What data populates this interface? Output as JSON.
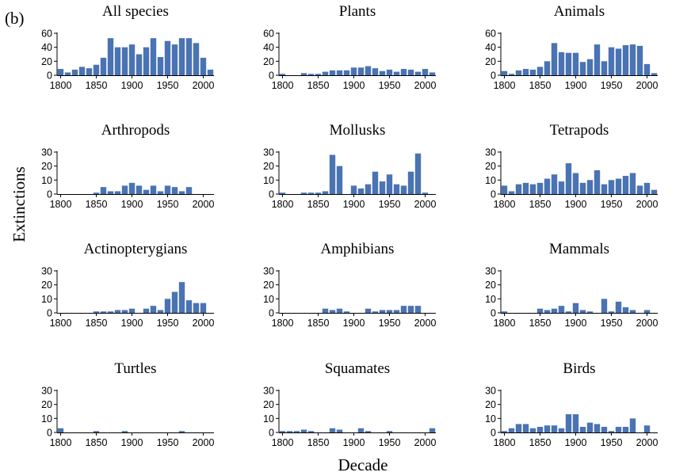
{
  "figure": {
    "label": "(b)",
    "xlabel": "Decade",
    "ylabel": "Extinctions",
    "bar_color": "#4a73b3"
  },
  "chart_data": [
    {
      "type": "bar",
      "title": "All species",
      "ylim": [
        0,
        60
      ],
      "yticks": [
        0,
        20,
        40,
        60
      ],
      "xticks": [
        1800,
        1850,
        1900,
        1950,
        2000
      ],
      "decades": [
        1800,
        1810,
        1820,
        1830,
        1840,
        1850,
        1860,
        1870,
        1880,
        1890,
        1900,
        1910,
        1920,
        1930,
        1940,
        1950,
        1960,
        1970,
        1980,
        1990,
        2000,
        2010
      ],
      "values": [
        9,
        4,
        8,
        12,
        10,
        15,
        25,
        53,
        40,
        40,
        44,
        30,
        40,
        53,
        26,
        49,
        44,
        53,
        53,
        46,
        25,
        8
      ]
    },
    {
      "type": "bar",
      "title": "Plants",
      "ylim": [
        0,
        60
      ],
      "yticks": [
        0,
        20,
        40,
        60
      ],
      "xticks": [
        1800,
        1850,
        1900,
        1950,
        2000
      ],
      "decades": [
        1800,
        1810,
        1820,
        1830,
        1840,
        1850,
        1860,
        1870,
        1880,
        1890,
        1900,
        1910,
        1920,
        1930,
        1940,
        1950,
        1960,
        1970,
        1980,
        1990,
        2000,
        2010
      ],
      "values": [
        2,
        0,
        0,
        3,
        2,
        2,
        5,
        7,
        7,
        7,
        11,
        11,
        13,
        10,
        6,
        8,
        5,
        9,
        8,
        5,
        9,
        4
      ]
    },
    {
      "type": "bar",
      "title": "Animals",
      "ylim": [
        0,
        60
      ],
      "yticks": [
        0,
        20,
        40,
        60
      ],
      "xticks": [
        1800,
        1850,
        1900,
        1950,
        2000
      ],
      "decades": [
        1800,
        1810,
        1820,
        1830,
        1840,
        1850,
        1860,
        1870,
        1880,
        1890,
        1900,
        1910,
        1920,
        1930,
        1940,
        1950,
        1960,
        1970,
        1980,
        1990,
        2000,
        2010
      ],
      "values": [
        6,
        2,
        7,
        9,
        8,
        12,
        20,
        46,
        33,
        32,
        32,
        19,
        23,
        44,
        20,
        40,
        38,
        43,
        44,
        42,
        16,
        3
      ]
    },
    {
      "type": "bar",
      "title": "Arthropods",
      "ylim": [
        0,
        30
      ],
      "yticks": [
        0,
        10,
        20,
        30
      ],
      "xticks": [
        1800,
        1850,
        1900,
        1950,
        2000
      ],
      "decades": [
        1800,
        1810,
        1820,
        1830,
        1840,
        1850,
        1860,
        1870,
        1880,
        1890,
        1900,
        1910,
        1920,
        1930,
        1940,
        1950,
        1960,
        1970,
        1980,
        1990,
        2000,
        2010
      ],
      "values": [
        0,
        0,
        0,
        0,
        0,
        1,
        5,
        2,
        2,
        6,
        8,
        6,
        3,
        6,
        2,
        6,
        5,
        2,
        5,
        0,
        0,
        0
      ]
    },
    {
      "type": "bar",
      "title": "Mollusks",
      "ylim": [
        0,
        30
      ],
      "yticks": [
        0,
        10,
        20,
        30
      ],
      "xticks": [
        1800,
        1850,
        1900,
        1950,
        2000
      ],
      "decades": [
        1800,
        1810,
        1820,
        1830,
        1840,
        1850,
        1860,
        1870,
        1880,
        1890,
        1900,
        1910,
        1920,
        1930,
        1940,
        1950,
        1960,
        1970,
        1980,
        1990,
        2000,
        2010
      ],
      "values": [
        1,
        0,
        0,
        1,
        1,
        1,
        2,
        28,
        20,
        0,
        6,
        4,
        7,
        16,
        9,
        14,
        7,
        6,
        16,
        29,
        1,
        0
      ]
    },
    {
      "type": "bar",
      "title": "Tetrapods",
      "ylim": [
        0,
        30
      ],
      "yticks": [
        0,
        10,
        20,
        30
      ],
      "xticks": [
        1800,
        1850,
        1900,
        1950,
        2000
      ],
      "decades": [
        1800,
        1810,
        1820,
        1830,
        1840,
        1850,
        1860,
        1870,
        1880,
        1890,
        1900,
        1910,
        1920,
        1930,
        1940,
        1950,
        1960,
        1970,
        1980,
        1990,
        2000,
        2010
      ],
      "values": [
        6,
        2,
        7,
        8,
        7,
        8,
        11,
        14,
        9,
        22,
        15,
        8,
        10,
        17,
        7,
        10,
        11,
        13,
        15,
        6,
        8,
        3
      ]
    },
    {
      "type": "bar",
      "title": "Actinopterygians",
      "ylim": [
        0,
        30
      ],
      "yticks": [
        0,
        10,
        20,
        30
      ],
      "xticks": [
        1800,
        1850,
        1900,
        1950,
        2000
      ],
      "decades": [
        1800,
        1810,
        1820,
        1830,
        1840,
        1850,
        1860,
        1870,
        1880,
        1890,
        1900,
        1910,
        1920,
        1930,
        1940,
        1950,
        1960,
        1970,
        1980,
        1990,
        2000,
        2010
      ],
      "values": [
        0,
        0,
        0,
        0,
        0,
        1,
        1,
        1,
        2,
        2,
        3,
        0,
        3,
        5,
        2,
        10,
        15,
        22,
        9,
        7,
        7,
        0
      ]
    },
    {
      "type": "bar",
      "title": "Amphibians",
      "ylim": [
        0,
        30
      ],
      "yticks": [
        0,
        10,
        20,
        30
      ],
      "xticks": [
        1800,
        1850,
        1900,
        1950,
        2000
      ],
      "decades": [
        1800,
        1810,
        1820,
        1830,
        1840,
        1850,
        1860,
        1870,
        1880,
        1890,
        1900,
        1910,
        1920,
        1930,
        1940,
        1950,
        1960,
        1970,
        1980,
        1990,
        2000,
        2010
      ],
      "values": [
        0,
        0,
        0,
        0,
        0,
        0,
        3,
        2,
        3,
        1,
        0,
        0,
        3,
        1,
        2,
        2,
        2,
        5,
        5,
        5,
        0,
        0
      ]
    },
    {
      "type": "bar",
      "title": "Mammals",
      "ylim": [
        0,
        30
      ],
      "yticks": [
        0,
        10,
        20,
        30
      ],
      "xticks": [
        1800,
        1850,
        1900,
        1950,
        2000
      ],
      "decades": [
        1800,
        1810,
        1820,
        1830,
        1840,
        1850,
        1860,
        1870,
        1880,
        1890,
        1900,
        1910,
        1920,
        1930,
        1940,
        1950,
        1960,
        1970,
        1980,
        1990,
        2000,
        2010
      ],
      "values": [
        1,
        0,
        0,
        0,
        0,
        3,
        2,
        3,
        5,
        1,
        7,
        2,
        1,
        0,
        10,
        1,
        8,
        4,
        2,
        0,
        2,
        0
      ]
    },
    {
      "type": "bar",
      "title": "Turtles",
      "ylim": [
        0,
        30
      ],
      "yticks": [
        0,
        10,
        20,
        30
      ],
      "xticks": [
        1800,
        1850,
        1900,
        1950,
        2000
      ],
      "decades": [
        1800,
        1810,
        1820,
        1830,
        1840,
        1850,
        1860,
        1870,
        1880,
        1890,
        1900,
        1910,
        1920,
        1930,
        1940,
        1950,
        1960,
        1970,
        1980,
        1990,
        2000,
        2010
      ],
      "values": [
        3,
        0,
        0,
        0,
        0,
        1,
        0,
        0,
        0,
        1,
        0,
        0,
        0,
        0,
        0,
        0,
        0,
        1,
        0,
        0,
        0,
        0
      ]
    },
    {
      "type": "bar",
      "title": "Squamates",
      "ylim": [
        0,
        30
      ],
      "yticks": [
        0,
        10,
        20,
        30
      ],
      "xticks": [
        1800,
        1850,
        1900,
        1950,
        2000
      ],
      "decades": [
        1800,
        1810,
        1820,
        1830,
        1840,
        1850,
        1860,
        1870,
        1880,
        1890,
        1900,
        1910,
        1920,
        1930,
        1940,
        1950,
        1960,
        1970,
        1980,
        1990,
        2000,
        2010
      ],
      "values": [
        1,
        1,
        1,
        2,
        1,
        0,
        0,
        3,
        2,
        0,
        0,
        3,
        1,
        0,
        0,
        1,
        0,
        0,
        0,
        0,
        0,
        3
      ]
    },
    {
      "type": "bar",
      "title": "Birds",
      "ylim": [
        0,
        30
      ],
      "yticks": [
        0,
        10,
        20,
        30
      ],
      "xticks": [
        1800,
        1850,
        1900,
        1950,
        2000
      ],
      "decades": [
        1800,
        1810,
        1820,
        1830,
        1840,
        1850,
        1860,
        1870,
        1880,
        1890,
        1900,
        1910,
        1920,
        1930,
        1940,
        1950,
        1960,
        1970,
        1980,
        1990,
        2000,
        2010
      ],
      "values": [
        1,
        3,
        6,
        6,
        3,
        4,
        5,
        5,
        3,
        13,
        13,
        4,
        7,
        6,
        4,
        1,
        4,
        4,
        10,
        0,
        5,
        0
      ]
    }
  ]
}
